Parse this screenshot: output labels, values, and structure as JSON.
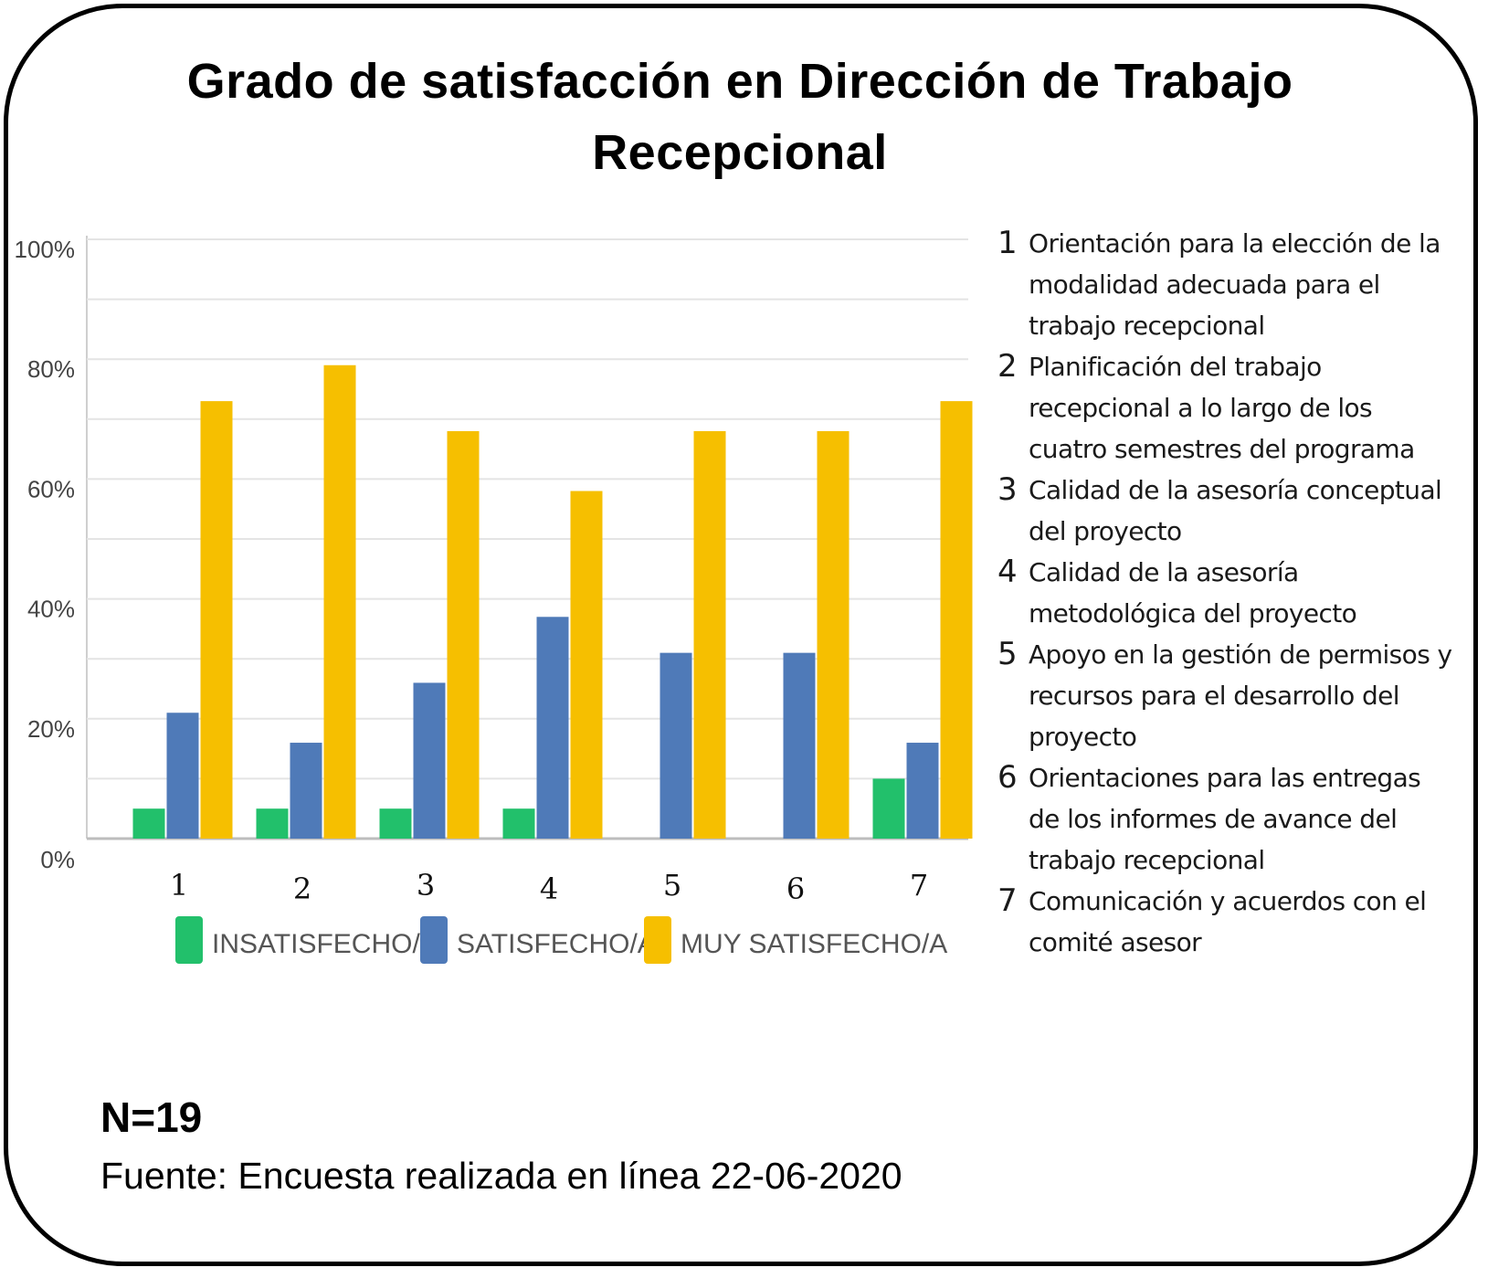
{
  "chart_data": {
    "type": "bar",
    "title": "Grado de satisfacción en Dirección de Trabajo Recepcional",
    "categories": [
      "1",
      "2",
      "3",
      "4",
      "5",
      "6",
      "7"
    ],
    "series": [
      {
        "name": "INSATISFECHO/A",
        "color": "#22c06b",
        "values": [
          5,
          5,
          5,
          5,
          0,
          0,
          10
        ]
      },
      {
        "name": "SATISFECHO/A",
        "color": "#4f7ab8",
        "values": [
          21,
          16,
          26,
          37,
          31,
          31,
          16
        ]
      },
      {
        "name": "MUY SATISFECHO/A",
        "color": "#f6bf00",
        "values": [
          73,
          79,
          68,
          58,
          68,
          68,
          73
        ]
      }
    ],
    "yticks": [
      "0%",
      "20%",
      "40%",
      "60%",
      "80%",
      "100%"
    ],
    "ylim": [
      0,
      100
    ],
    "grid": true,
    "legend": "bottom",
    "xlabel": "",
    "ylabel": ""
  },
  "descriptions": [
    {
      "num": "1",
      "text": "Orientación para la elección de la modalidad adecuada para el trabajo recepcional"
    },
    {
      "num": "2",
      "text": "Planificación del trabajo recepcional a lo largo de los cuatro semestres del programa"
    },
    {
      "num": "3",
      "text": "Calidad de la asesoría conceptual del proyecto"
    },
    {
      "num": "4",
      "text": "Calidad de la asesoría metodológica del proyecto"
    },
    {
      "num": "5",
      "text": "Apoyo en la gestión de permisos y recursos para el desarrollo del proyecto"
    },
    {
      "num": "6",
      "text": "Orientaciones para las entregas de los informes de avance del trabajo recepcional"
    },
    {
      "num": "7",
      "text": "Comunicación y acuerdos con el comité asesor"
    }
  ],
  "footer": {
    "n": "N=19",
    "source": "Fuente: Encuesta realizada en línea 22-06-2020"
  }
}
